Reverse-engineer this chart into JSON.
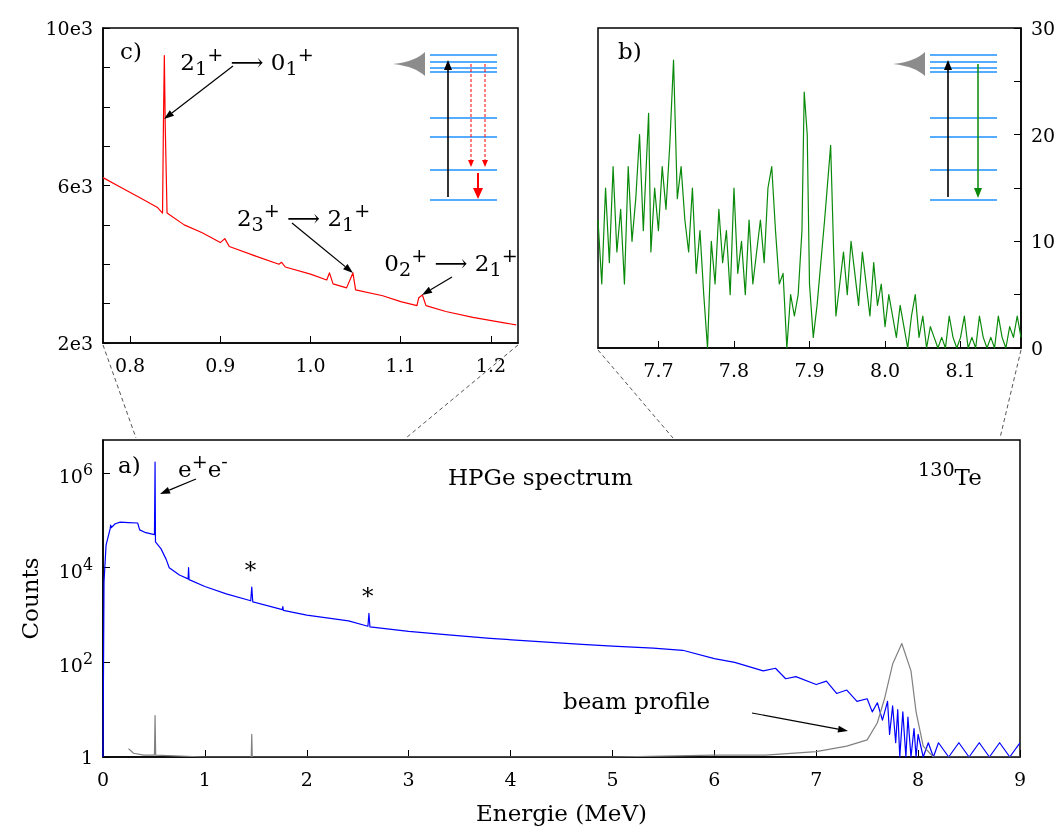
{
  "chart_data": [
    {
      "type": "line",
      "marker": "none",
      "xlim": [
        0.77,
        1.23
      ],
      "xticks": [
        0.8,
        0.9,
        {
          "value": 1,
          "label": "1.0"
        },
        1.1,
        1.2
      ],
      "ylim": [
        2000,
        10000
      ],
      "yticks": [
        {
          "value": 2000,
          "label": "2e3"
        },
        {
          "value": 3000,
          "label": null
        },
        {
          "value": 4000,
          "label": null
        },
        {
          "value": 5000,
          "label": null
        },
        {
          "value": 6000,
          "label": "6e3"
        },
        {
          "value": 7000,
          "label": null
        },
        {
          "value": 8000,
          "label": null
        },
        {
          "value": 9000,
          "label": null
        },
        {
          "value": 10000,
          "label": "10e3"
        }
      ],
      "annotations": [
        "c)",
        {
          "text": "2$_{1}$$^{+}$ ⟶ 0$_{1}$$^{+}$",
          "x": 0.838,
          "y": 7700
        },
        {
          "text": "2$_{3}$$^{+}$ ⟶ 2$_{1}$$^{+}$",
          "x": 1.047,
          "y": 3780
        },
        {
          "text": "0$_{2}$$^{+}$ ⟶ 2$_{1}$$^{+}$",
          "x": 1.124,
          "y": 3220
        }
      ],
      "series": [
        {
          "color": "#ff0000",
          "x": [
            0.77,
            0.79,
            0.81,
            0.83,
            0.836,
            0.837,
            0.838,
            0.839,
            0.841,
            0.86,
            0.88,
            0.9,
            0.905,
            0.91,
            0.94,
            0.965,
            0.968,
            0.972,
            1.0,
            1.018,
            1.021,
            1.025,
            1.04,
            1.047,
            1.05,
            1.08,
            1.1,
            1.118,
            1.12,
            1.124,
            1.128,
            1.15,
            1.18,
            1.21,
            1.228
          ],
          "values": [
            6200,
            5950,
            5700,
            5450,
            5300,
            7600,
            9300,
            7500,
            5300,
            5000,
            4800,
            4550,
            4650,
            4450,
            4200,
            4000,
            4050,
            3930,
            3750,
            3600,
            3780,
            3500,
            3400,
            3780,
            3350,
            3200,
            3050,
            2950,
            3150,
            3220,
            2950,
            2800,
            2650,
            2530,
            2460
          ]
        }
      ]
    },
    {
      "type": "line",
      "marker": "none",
      "xlim": [
        7.62,
        8.18
      ],
      "xticks": [
        7.7,
        7.8,
        7.9,
        {
          "value": 8,
          "label": "8.0"
        },
        8.1
      ],
      "ylim": [
        0,
        30
      ],
      "yticks": [
        0,
        {
          "value": 5,
          "label": null
        },
        10,
        {
          "value": 15,
          "label": null
        },
        20,
        {
          "value": 25,
          "label": null
        },
        30
      ],
      "annotations": [
        "b)"
      ],
      "series": [
        {
          "color": "#0a8a0a",
          "x": [
            7.62,
            7.625,
            7.63,
            7.635,
            7.64,
            7.645,
            7.65,
            7.655,
            7.66,
            7.665,
            7.67,
            7.675,
            7.68,
            7.687,
            7.69,
            7.695,
            7.7,
            7.705,
            7.71,
            7.715,
            7.72,
            7.725,
            7.73,
            7.735,
            7.74,
            7.745,
            7.75,
            7.755,
            7.76,
            7.765,
            7.77,
            7.775,
            7.78,
            7.785,
            7.79,
            7.795,
            7.8,
            7.805,
            7.81,
            7.815,
            7.82,
            7.825,
            7.83,
            7.835,
            7.84,
            7.845,
            7.85,
            7.855,
            7.86,
            7.865,
            7.87,
            7.875,
            7.88,
            7.885,
            7.89,
            7.893,
            7.897,
            7.9,
            7.905,
            7.91,
            7.915,
            7.92,
            7.928,
            7.932,
            7.935,
            7.94,
            7.945,
            7.95,
            7.955,
            7.96,
            7.965,
            7.97,
            7.975,
            7.98,
            7.985,
            7.99,
            7.995,
            8.0,
            8.005,
            8.01,
            8.015,
            8.02,
            8.025,
            8.03,
            8.035,
            8.04,
            8.045,
            8.05,
            8.055,
            8.06,
            8.065,
            8.07,
            8.075,
            8.08,
            8.085,
            8.09,
            8.095,
            8.1,
            8.105,
            8.11,
            8.115,
            8.12,
            8.125,
            8.13,
            8.135,
            8.14,
            8.145,
            8.15,
            8.155,
            8.16,
            8.165,
            8.17,
            8.175,
            8.18
          ],
          "values": [
            12,
            6,
            15,
            8,
            17,
            9,
            13,
            6,
            17,
            10,
            14,
            20,
            11,
            22,
            9,
            15,
            11,
            17,
            13,
            19,
            27,
            14,
            17,
            12,
            9,
            15,
            7,
            11,
            5,
            0,
            10,
            6,
            13,
            8,
            11,
            5,
            15,
            7,
            10,
            5,
            12,
            6,
            9,
            12,
            8,
            15,
            17,
            11,
            6,
            7,
            0,
            5,
            3,
            5,
            11,
            24,
            20,
            6,
            1,
            4,
            8,
            12,
            19,
            9,
            3,
            6,
            9,
            5,
            10,
            7,
            4,
            9,
            6,
            3,
            8,
            4,
            6,
            2,
            5,
            3,
            1,
            4,
            2,
            0,
            3,
            5,
            1,
            3,
            0,
            2,
            1,
            0,
            1,
            0,
            3,
            1,
            0,
            1,
            3,
            0,
            1,
            0,
            3,
            1,
            0,
            1,
            0,
            3,
            1,
            0,
            2,
            1,
            3,
            1
          ]
        }
      ]
    },
    {
      "type": "line",
      "marker": "none",
      "log": "y",
      "xlabel": "Energie (MeV)",
      "ylabel": "Counts",
      "xlim": [
        0,
        9
      ],
      "xticks": [
        0,
        1,
        2,
        3,
        4,
        5,
        6,
        7,
        8,
        9
      ],
      "ylim": [
        1,
        5000000
      ],
      "yticks": [
        1,
        {
          "value": 100,
          "label": "10$^{2}$"
        },
        {
          "value": 10000,
          "label": "10$^{4}$"
        },
        {
          "value": 1000000,
          "label": "10$^{6}$"
        }
      ],
      "annotations": [
        "a)",
        "HPGe spectrum",
        "$^{130}$Te",
        {
          "text": "e$^{+}$e$^{-}$",
          "x": 0.56,
          "y": 360000
        },
        {
          "text": "*",
          "x": 1.46,
          "y": 3900
        },
        {
          "text": "*",
          "x": 2.61,
          "y": 1080
        },
        "beam profile"
      ],
      "series": [
        {
          "color": "#0000ff",
          "x": [
            0,
            0.01,
            0.03,
            0.07,
            0.075,
            0.08,
            0.12,
            0.17,
            0.25,
            0.34,
            0.36,
            0.42,
            0.505,
            0.511,
            0.515,
            0.57,
            0.62,
            0.65,
            0.75,
            0.835,
            0.84,
            0.845,
            1.0,
            1.21,
            1.45,
            1.46,
            1.47,
            1.76,
            1.765,
            1.77,
            2.0,
            2.41,
            2.6,
            2.61,
            2.62,
            3.0,
            3.39,
            3.8,
            4.28,
            4.7,
            5.0,
            5.4,
            5.69,
            6.0,
            6.2,
            6.48,
            6.6,
            6.7,
            6.8,
            7.0,
            7.1,
            7.2,
            7.3,
            7.4,
            7.5,
            7.55,
            7.6,
            7.65,
            7.7,
            7.72,
            7.75,
            7.78,
            7.8,
            7.82,
            7.85,
            7.88,
            7.9,
            7.93,
            7.96,
            7.98,
            8.0,
            8.05,
            8.1,
            8.15,
            8.2,
            8.3,
            8.4,
            8.5,
            8.6,
            8.7,
            8.8,
            8.9,
            9.0
          ],
          "values": [
            1,
            5000,
            30000,
            66000,
            80000,
            70000,
            85000,
            92000,
            90000,
            88000,
            63000,
            55000,
            50000,
            1700000,
            35000,
            25000,
            15000,
            10000,
            7000,
            5800,
            10000,
            5600,
            4000,
            2800,
            2000,
            3900,
            1900,
            1300,
            1500,
            1250,
            1000,
            750,
            580,
            1080,
            560,
            450,
            380,
            320,
            275,
            240,
            220,
            200,
            180,
            120,
            100,
            66,
            75,
            45,
            50,
            34,
            40,
            22,
            26,
            15,
            17,
            9,
            14,
            6,
            15,
            3,
            12,
            2,
            10,
            1,
            9,
            1,
            7,
            1,
            4,
            1,
            3,
            1,
            2,
            1,
            2,
            1,
            2,
            1,
            2,
            1,
            2,
            1,
            2
          ]
        },
        {
          "color": "#808080",
          "x": [
            0.25,
            0.3,
            0.4,
            0.505,
            0.511,
            0.517,
            1.0,
            1.455,
            1.46,
            1.465,
            3.0,
            5.0,
            6.0,
            6.5,
            7.0,
            7.3,
            7.5,
            7.6,
            7.67,
            7.75,
            7.84,
            7.93,
            7.98,
            8.05,
            8.15,
            9.0
          ],
          "values": [
            1.5,
            1.2,
            1.1,
            1.1,
            7.5,
            1.1,
            1,
            1,
            3,
            1,
            1,
            1,
            1.1,
            1.1,
            1.3,
            1.7,
            2.3,
            5.3,
            17,
            92,
            250,
            66,
            9,
            1.7,
            1,
            1
          ]
        }
      ]
    }
  ]
}
